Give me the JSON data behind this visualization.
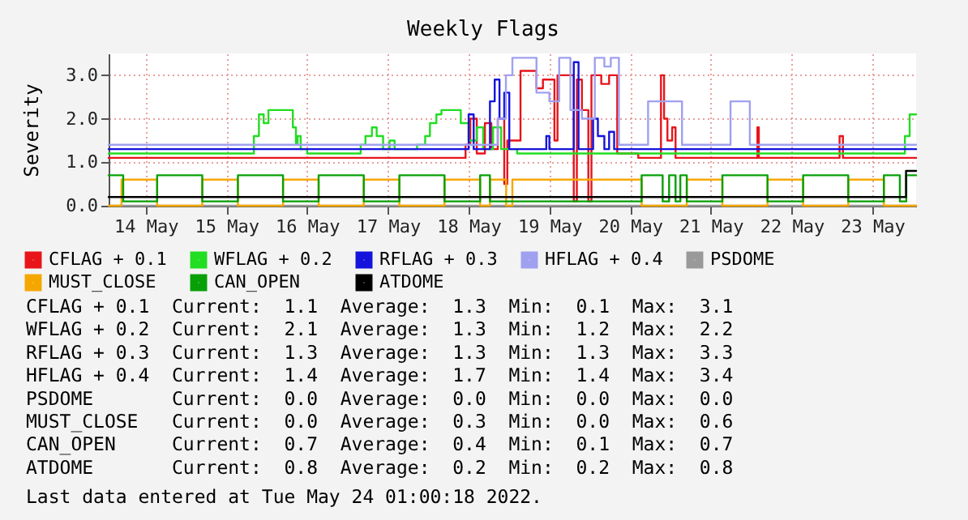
{
  "chart_data": {
    "type": "step",
    "title": "Weekly Flags",
    "ylabel": "Severity",
    "xlim": [
      "2022-05-14T01:00",
      "2022-05-24T01:00"
    ],
    "xticks": [
      {
        "value": "2022-05-14T12:00",
        "label": "14 May"
      },
      {
        "value": "2022-05-15T12:00",
        "label": "15 May"
      },
      {
        "value": "2022-05-16T12:00",
        "label": "16 May"
      },
      {
        "value": "2022-05-17T12:00",
        "label": "17 May"
      },
      {
        "value": "2022-05-18T12:00",
        "label": "18 May"
      },
      {
        "value": "2022-05-19T12:00",
        "label": "19 May"
      },
      {
        "value": "2022-05-20T12:00",
        "label": "20 May"
      },
      {
        "value": "2022-05-21T12:00",
        "label": "21 May"
      },
      {
        "value": "2022-05-22T12:00",
        "label": "22 May"
      },
      {
        "value": "2022-05-23T12:00",
        "label": "23 May"
      }
    ],
    "ylim": [
      0,
      3.5
    ],
    "yticks": [
      {
        "value": 0,
        "label": "0.0"
      },
      {
        "value": 1,
        "label": "1.0"
      },
      {
        "value": 2,
        "label": "2.0"
      },
      {
        "value": 3,
        "label": "3.0"
      }
    ],
    "grid": true,
    "legend": "bottom",
    "series": [
      {
        "name": "CFLAG + 0.1",
        "color": "#e8141a",
        "x": [
          "2022-05-14T01:00",
          "2022-05-18T11:05",
          "2022-05-18T12:30",
          "2022-05-18T14:25",
          "2022-05-18T16:50",
          "2022-05-18T18:45",
          "2022-05-18T20:40",
          "2022-05-18T22:35",
          "2022-05-18T23:30",
          "2022-05-19T03:25",
          "2022-05-19T08:10",
          "2022-05-19T10:05",
          "2022-05-19T13:30",
          "2022-05-19T14:25",
          "2022-05-19T19:15",
          "2022-05-19T20:10",
          "2022-05-19T21:40",
          "2022-05-19T23:35",
          "2022-05-20T00:30",
          "2022-05-20T03:25",
          "2022-05-20T05:45",
          "2022-05-20T08:10",
          "2022-05-20T14:25",
          "2022-05-20T21:10",
          "2022-05-20T22:05",
          "2022-05-20T23:05",
          "2022-05-21T00:30",
          "2022-05-21T01:30",
          "2022-05-22T01:50",
          "2022-05-22T02:15",
          "2022-05-23T02:15",
          "2022-05-23T03:15",
          "2022-05-24T01:00"
        ],
        "values": [
          1.1,
          1.4,
          2.0,
          1.2,
          1.9,
          1.3,
          2.0,
          0.5,
          1.5,
          3.1,
          2.7,
          2.9,
          1.5,
          3.0,
          0.1,
          2.9,
          2.2,
          0.1,
          3.0,
          2.8,
          3.0,
          1.2,
          1.1,
          3.0,
          2.0,
          1.5,
          1.8,
          1.1,
          1.8,
          1.1,
          1.6,
          1.1,
          1.1
        ]
      },
      {
        "name": "WFLAG + 0.2",
        "color": "#22dd22",
        "x": [
          "2022-05-14T01:00",
          "2022-05-15T20:10",
          "2022-05-15T21:40",
          "2022-05-15T23:05",
          "2022-05-16T00:30",
          "2022-05-16T07:15",
          "2022-05-16T07:45",
          "2022-05-16T08:40",
          "2022-05-16T09:10",
          "2022-05-16T10:05",
          "2022-05-16T12:00",
          "2022-05-17T03:55",
          "2022-05-17T05:20",
          "2022-05-17T07:15",
          "2022-05-17T08:40",
          "2022-05-17T10:35",
          "2022-05-17T12:30",
          "2022-05-17T14:00",
          "2022-05-17T16:50",
          "2022-05-17T20:40",
          "2022-05-17T23:05",
          "2022-05-18T00:30",
          "2022-05-18T02:25",
          "2022-05-18T03:55",
          "2022-05-18T07:45",
          "2022-05-18T09:40",
          "2022-05-18T12:00",
          "2022-05-18T14:25",
          "2022-05-18T16:20",
          "2022-05-18T19:15",
          "2022-05-18T21:40",
          "2022-05-19T02:25",
          "2022-05-23T20:10",
          "2022-05-23T21:40",
          "2022-05-23T23:05",
          "2022-05-24T01:00"
        ],
        "values": [
          1.2,
          1.6,
          2.1,
          1.9,
          2.2,
          2.2,
          1.8,
          1.4,
          1.6,
          1.3,
          1.2,
          1.4,
          1.6,
          1.8,
          1.6,
          1.3,
          1.5,
          1.3,
          1.3,
          1.4,
          1.6,
          1.9,
          2.1,
          2.2,
          2.2,
          1.9,
          1.5,
          1.8,
          1.3,
          1.8,
          1.3,
          1.2,
          1.2,
          1.6,
          2.1,
          2.1
        ]
      },
      {
        "name": "RFLAG + 0.3",
        "color": "#1414dc",
        "x": [
          "2022-05-14T01:00",
          "2022-05-18T12:00",
          "2022-05-18T13:30",
          "2022-05-18T18:20",
          "2022-05-18T19:45",
          "2022-05-18T21:10",
          "2022-05-18T22:35",
          "2022-05-19T00:05",
          "2022-05-19T11:05",
          "2022-05-19T12:00",
          "2022-05-19T19:15",
          "2022-05-19T20:40",
          "2022-05-20T01:00",
          "2022-05-20T02:25",
          "2022-05-20T04:20",
          "2022-05-20T05:45",
          "2022-05-20T07:15",
          "2022-05-24T01:00"
        ],
        "values": [
          1.3,
          2.1,
          1.3,
          2.4,
          2.9,
          2.0,
          2.6,
          1.3,
          1.6,
          1.3,
          3.3,
          1.3,
          2.0,
          1.6,
          1.3,
          1.7,
          1.3,
          1.3
        ]
      },
      {
        "name": "HFLAG + 0.4",
        "color": "#a0a0f0",
        "x": [
          "2022-05-14T01:00",
          "2022-05-18T20:40",
          "2022-05-18T23:05",
          "2022-05-19T01:00",
          "2022-05-19T08:10",
          "2022-05-19T12:00",
          "2022-05-19T14:55",
          "2022-05-19T18:15",
          "2022-05-19T21:40",
          "2022-05-20T01:30",
          "2022-05-20T04:20",
          "2022-05-20T06:15",
          "2022-05-20T08:40",
          "2022-05-20T17:20",
          "2022-05-21T03:25",
          "2022-05-21T17:50",
          "2022-05-21T23:35",
          "2022-05-24T01:00"
        ],
        "values": [
          1.4,
          2.0,
          3.0,
          3.4,
          2.6,
          2.4,
          3.4,
          2.2,
          2.0,
          3.4,
          3.2,
          3.4,
          1.4,
          2.4,
          1.4,
          2.4,
          1.4,
          1.4
        ]
      },
      {
        "name": "PSDOME",
        "color": "#999999",
        "x": [
          "2022-05-14T01:00",
          "2022-05-24T01:00"
        ],
        "values": [
          0,
          0
        ]
      },
      {
        "name": "MUST_CLOSE",
        "color": "#f5a700",
        "x": [
          "2022-05-14T01:00",
          "2022-05-14T04:50",
          "2022-05-14T15:25",
          "2022-05-15T04:50",
          "2022-05-15T15:25",
          "2022-05-16T04:50",
          "2022-05-16T15:25",
          "2022-05-17T04:50",
          "2022-05-17T15:25",
          "2022-05-18T04:50",
          "2022-05-18T15:25",
          "2022-05-18T18:20",
          "2022-05-18T23:10",
          "2022-05-19T01:00",
          "2022-05-20T15:25",
          "2022-05-21T04:50",
          "2022-05-21T15:25",
          "2022-05-22T04:50",
          "2022-05-22T15:25",
          "2022-05-23T04:50",
          "2022-05-23T15:25",
          "2022-05-24T01:00"
        ],
        "values": [
          0,
          0.6,
          0,
          0.6,
          0,
          0.6,
          0,
          0.6,
          0,
          0.6,
          0,
          0.6,
          0,
          0.6,
          0,
          0.6,
          0,
          0.6,
          0,
          0.6,
          0,
          0
        ]
      },
      {
        "name": "CAN_OPEN",
        "color": "#07a007",
        "x": [
          "2022-05-14T01:00",
          "2022-05-14T05:20",
          "2022-05-14T15:25",
          "2022-05-15T04:50",
          "2022-05-15T15:25",
          "2022-05-16T04:50",
          "2022-05-16T15:25",
          "2022-05-17T04:50",
          "2022-05-17T15:25",
          "2022-05-18T04:50",
          "2022-05-18T15:25",
          "2022-05-18T18:20",
          "2022-05-20T15:25",
          "2022-05-20T21:40",
          "2022-05-20T23:35",
          "2022-05-21T01:30",
          "2022-05-21T02:55",
          "2022-05-21T04:50",
          "2022-05-21T15:25",
          "2022-05-22T04:50",
          "2022-05-22T15:25",
          "2022-05-23T04:50",
          "2022-05-23T15:25",
          "2022-05-23T20:10",
          "2022-05-23T22:05",
          "2022-05-24T01:00"
        ],
        "values": [
          0.7,
          0.1,
          0.7,
          0.1,
          0.7,
          0.1,
          0.7,
          0.1,
          0.7,
          0.1,
          0.7,
          0.1,
          0.7,
          0.1,
          0.7,
          0.1,
          0.7,
          0.1,
          0.7,
          0.1,
          0.7,
          0.1,
          0.7,
          0.1,
          0.7,
          0.7
        ]
      },
      {
        "name": "ATDOME",
        "color": "#000000",
        "x": [
          "2022-05-14T01:00",
          "2022-05-23T22:00",
          "2022-05-24T01:00"
        ],
        "values": [
          0.2,
          0.8,
          0.8
        ]
      }
    ],
    "annotations": [
      "CFLAG + 0.1  Current:  1.1  Average:  1.3  Min:  0.1  Max:  3.1",
      "WFLAG + 0.2  Current:  2.1  Average:  1.3  Min:  1.2  Max:  2.2",
      "RFLAG + 0.3  Current:  1.3  Average:  1.3  Min:  1.3  Max:  3.3",
      "HFLAG + 0.4  Current:  1.4  Average:  1.7  Min:  1.4  Max:  3.4",
      "PSDOME       Current:  0.0  Average:  0.0  Min:  0.0  Max:  0.0",
      "MUST_CLOSE   Current:  0.0  Average:  0.3  Min:  0.0  Max:  0.6",
      "CAN_OPEN     Current:  0.7  Average:  0.4  Min:  0.1  Max:  0.7",
      "ATDOME       Current:  0.8  Average:  0.2  Min:  0.2  Max:  0.8",
      "Last data entered at Tue May 24 01:00:18 2022."
    ]
  }
}
